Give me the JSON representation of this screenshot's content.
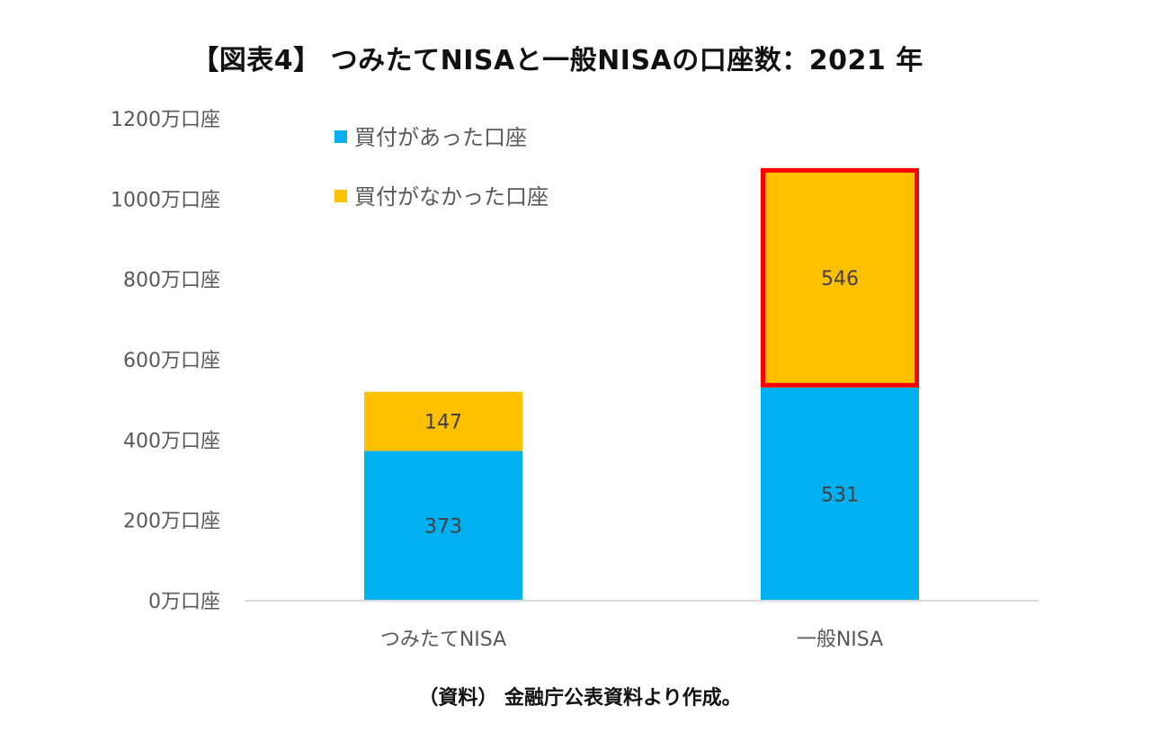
{
  "chart_data": {
    "type": "bar",
    "stacked": true,
    "title": "【図表4】 つみたてNISAと一般NISAの口座数：2021 年",
    "categories": [
      "つみたてNISA",
      "一般NISA"
    ],
    "series": [
      {
        "name": "買付があった口座",
        "values": [
          373,
          531
        ],
        "color": "#00B0F0"
      },
      {
        "name": "買付がなかった口座",
        "values": [
          147,
          546
        ],
        "color": "#FFC000"
      }
    ],
    "ylim": [
      0,
      1200
    ],
    "yticks": [
      0,
      200,
      400,
      600,
      800,
      1000,
      1200
    ],
    "ytick_suffix": "万口座",
    "legend_position": "top-left",
    "grid": false,
    "highlight": {
      "category": "一般NISA",
      "series": "買付がなかった口座",
      "color": "#FF0000"
    },
    "source": "（資料） 金融庁公表資料より作成。"
  }
}
